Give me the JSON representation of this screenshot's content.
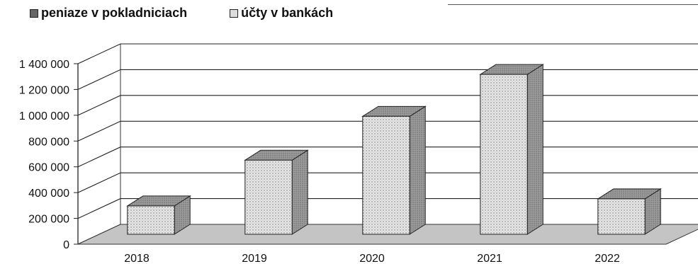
{
  "legend": [
    {
      "label": "peniaze v pokladniciach",
      "swatch": "#666666"
    },
    {
      "label": "účty v bankách",
      "swatch": "#dddddd"
    }
  ],
  "chart_data": {
    "type": "bar",
    "categories": [
      "2018",
      "2019",
      "2020",
      "2021",
      "2022"
    ],
    "series": [
      {
        "name": "peniaze v pokladniciach",
        "values": [
          0,
          0,
          0,
          0,
          0
        ]
      },
      {
        "name": "účty v bankách",
        "values": [
          220000,
          575000,
          915000,
          1240000,
          275000
        ]
      }
    ],
    "yticks": [
      0,
      200000,
      400000,
      600000,
      800000,
      1000000,
      1200000,
      1400000
    ],
    "ytick_labels": [
      "0",
      "200 000",
      "400 000",
      "600 000",
      "800 000",
      "1 000 000",
      "1 200 000",
      "1 400 000"
    ],
    "ylim": [
      0,
      1400000
    ],
    "grid": true,
    "legend_position": "top-left",
    "style": "3d-column",
    "colors": {
      "bar_face": "#e2e2e2",
      "bar_top": "#9a9a9a",
      "bar_side": "#8c8c8c",
      "floor": "#c4c4c4",
      "wall": "#ffffff"
    }
  }
}
